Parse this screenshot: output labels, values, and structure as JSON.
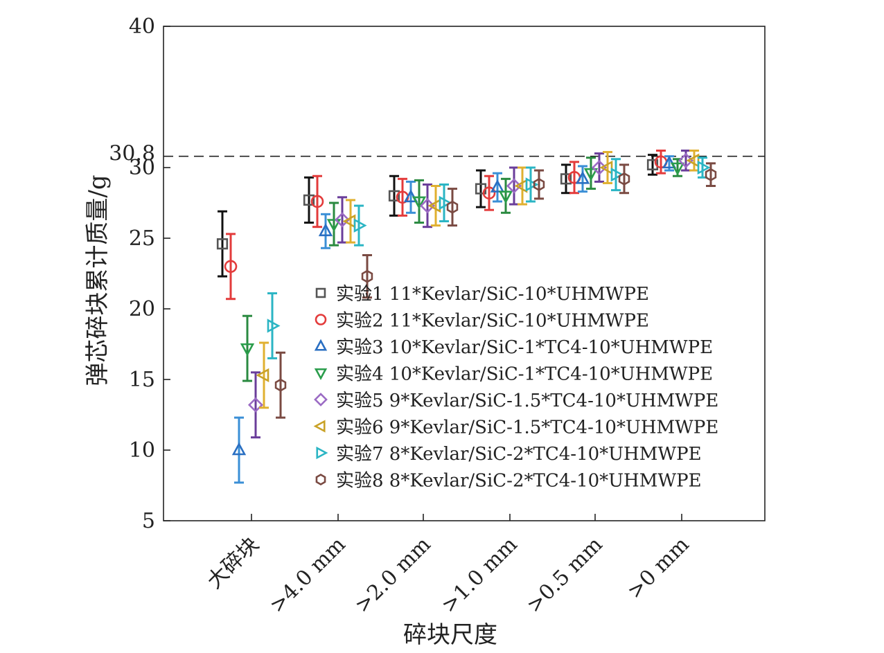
{
  "chart_data": {
    "type": "scatter",
    "title": "",
    "xlabel": "碎块尺度",
    "ylabel": "弹芯碎块累计质量/g",
    "categories": [
      "大碎块",
      ">4.0 mm",
      ">2.0 mm",
      ">1.0 mm",
      ">0.5 mm",
      ">0 mm"
    ],
    "ylim": [
      5,
      40
    ],
    "yticks": [
      5,
      10,
      15,
      20,
      25,
      30,
      40
    ],
    "reference_line": {
      "value": 30.8,
      "label": "30.8",
      "style": "dashed"
    },
    "legend_position": "center-right",
    "series": [
      {
        "name": "实验1 11*Kevlar/SiC-10*UHMWPE",
        "marker": "square",
        "color": "#555555",
        "errcolor": "#111111",
        "values": [
          24.6,
          27.7,
          28.0,
          28.5,
          29.2,
          30.2
        ],
        "errors": [
          2.3,
          1.6,
          1.4,
          1.3,
          1.0,
          0.7
        ]
      },
      {
        "name": "实验2 11*Kevlar/SiC-10*UHMWPE",
        "marker": "circle",
        "color": "#e33b3b",
        "errcolor": "#e33b3b",
        "values": [
          23.0,
          27.6,
          27.9,
          28.2,
          29.3,
          30.4
        ],
        "errors": [
          2.3,
          1.8,
          1.3,
          1.2,
          1.1,
          0.8
        ]
      },
      {
        "name": "实验3 10*Kevlar/SiC-1*TC4-10*UHMWPE",
        "marker": "triangle-up",
        "color": "#2a6fc2",
        "errcolor": "#3a8fd6",
        "values": [
          10.0,
          25.5,
          27.9,
          28.6,
          29.2,
          30.3
        ],
        "errors": [
          2.3,
          1.2,
          1.1,
          1.0,
          0.9,
          0.5
        ]
      },
      {
        "name": "实验4 10*Kevlar/SiC-1*TC4-10*UHMWPE",
        "marker": "triangle-down",
        "color": "#2a9d4b",
        "errcolor": "#2a8a40",
        "values": [
          17.2,
          26.0,
          27.6,
          28.0,
          29.6,
          30.0
        ],
        "errors": [
          2.3,
          1.5,
          1.5,
          1.2,
          1.1,
          0.6
        ]
      },
      {
        "name": "实验5 9*Kevlar/SiC-1.5*TC4-10*UHMWPE",
        "marker": "diamond",
        "color": "#9b6bc4",
        "errcolor": "#6a3d9a",
        "values": [
          13.2,
          26.3,
          27.3,
          28.7,
          30.0,
          30.5
        ],
        "errors": [
          2.3,
          1.6,
          1.5,
          1.3,
          1.0,
          0.7
        ]
      },
      {
        "name": "实验6 9*Kevlar/SiC-1.5*TC4-10*UHMWPE",
        "marker": "triangle-left",
        "color": "#c9a227",
        "errcolor": "#e0b030",
        "values": [
          15.3,
          26.2,
          27.3,
          28.7,
          30.0,
          30.5
        ],
        "errors": [
          2.3,
          1.5,
          1.4,
          1.3,
          1.1,
          0.7
        ]
      },
      {
        "name": "实验7 8*Kevlar/SiC-2*TC4-10*UHMWPE",
        "marker": "triangle-right",
        "color": "#2bb5c4",
        "errcolor": "#2bb5c4",
        "values": [
          18.8,
          25.9,
          27.5,
          28.8,
          29.5,
          30.0
        ],
        "errors": [
          2.3,
          1.4,
          1.3,
          1.2,
          1.1,
          0.7
        ]
      },
      {
        "name": "实验8 8*Kevlar/SiC-2*TC4-10*UHMWPE",
        "marker": "hexagon",
        "color": "#7a4a42",
        "errcolor": "#7a4a42",
        "values": [
          14.6,
          22.3,
          27.2,
          28.8,
          29.2,
          29.5
        ],
        "errors": [
          2.3,
          1.5,
          1.3,
          1.0,
          1.0,
          0.8
        ]
      }
    ]
  }
}
